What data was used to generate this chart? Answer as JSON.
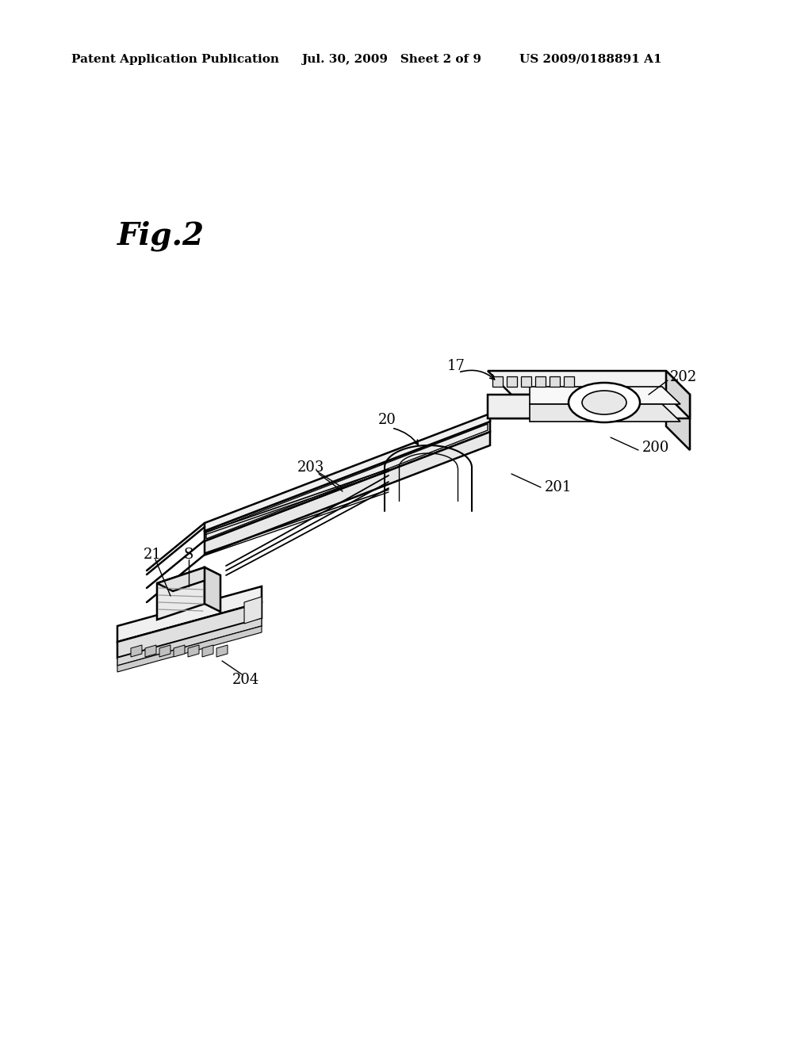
{
  "header_left": "Patent Application Publication",
  "header_mid": "Jul. 30, 2009   Sheet 2 of 9",
  "header_right": "US 2009/0188891 A1",
  "fig_label": "Fig.2",
  "bg_color": "#ffffff",
  "line_color": "#000000",
  "lw_main": 1.8,
  "lw_thin": 1.0,
  "label_17": "17",
  "label_20": "20",
  "label_21": "21",
  "label_S": "S",
  "label_200": "200",
  "label_201": "201",
  "label_202": "202",
  "label_203": "203",
  "label_204": "204",
  "font_size_label": 13,
  "font_size_header": 11,
  "font_size_fig": 28
}
